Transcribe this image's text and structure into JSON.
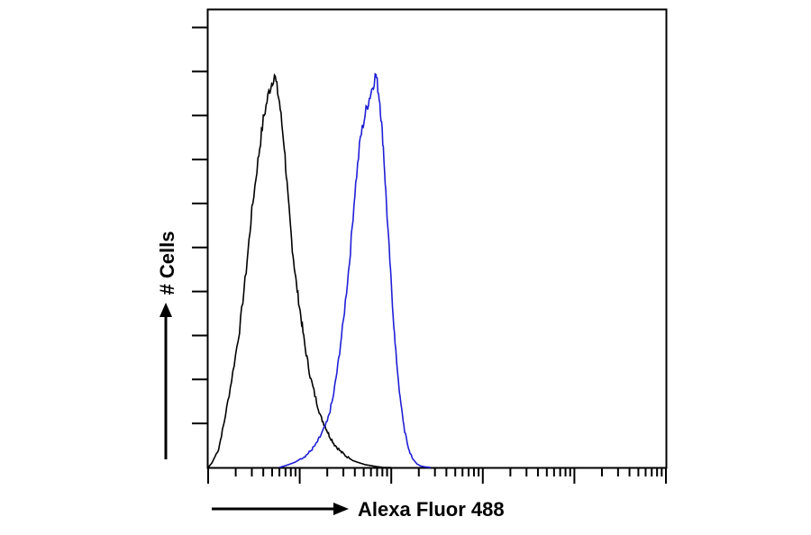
{
  "chart_data": {
    "type": "line",
    "title": "",
    "xlabel": "Alexa Fluor 488",
    "ylabel": "# Cells",
    "xscale": "log",
    "xlim": [
      1,
      100000
    ],
    "ylim": [
      0,
      1
    ],
    "grid": false,
    "legend": "none",
    "series": [
      {
        "color": "#000000",
        "x": [
          1,
          1.1,
          1.3,
          1.5,
          1.8,
          2.2,
          2.6,
          3,
          3.5,
          4,
          4.6,
          5.3,
          6,
          6.8,
          7.5,
          8.3,
          9.2,
          10.3,
          11.5,
          13,
          15,
          17,
          19,
          21,
          24,
          28,
          32,
          38,
          45,
          52,
          60,
          68,
          75,
          82,
          88,
          95,
          100
        ],
        "y": [
          0,
          0.01,
          0.04,
          0.1,
          0.19,
          0.3,
          0.43,
          0.56,
          0.67,
          0.76,
          0.82,
          0.86,
          0.8,
          0.7,
          0.58,
          0.48,
          0.4,
          0.33,
          0.26,
          0.2,
          0.15,
          0.11,
          0.09,
          0.07,
          0.05,
          0.035,
          0.025,
          0.015,
          0.01,
          0.006,
          0.004,
          0.002,
          0.001,
          0,
          0,
          0,
          0
        ]
      },
      {
        "color": "#1f1fd6",
        "x": [
          6,
          7,
          8,
          9,
          10,
          11.5,
          13,
          15,
          17,
          20,
          23,
          26,
          30,
          35,
          40,
          46,
          53,
          60,
          68,
          75,
          82,
          90,
          100,
          110,
          125,
          140,
          155,
          170,
          190,
          210,
          240,
          270
        ],
        "y": [
          0,
          0.004,
          0.008,
          0.012,
          0.018,
          0.025,
          0.035,
          0.05,
          0.07,
          0.1,
          0.15,
          0.22,
          0.32,
          0.45,
          0.6,
          0.72,
          0.78,
          0.82,
          0.86,
          0.8,
          0.7,
          0.55,
          0.4,
          0.27,
          0.15,
          0.08,
          0.04,
          0.02,
          0.008,
          0.003,
          0.001,
          0
        ]
      }
    ]
  }
}
